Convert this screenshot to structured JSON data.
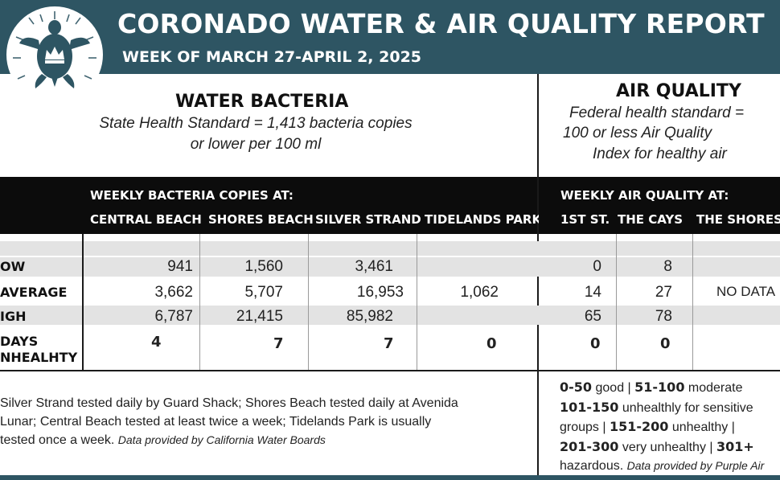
{
  "header": {
    "title": "CORONADO WATER & AIR QUALITY REPORT",
    "subtitle": "WEEK OF MARCH 27-APRIL 2, 2025",
    "logo_icon": "turtle-crown-logo"
  },
  "water": {
    "heading": "WATER BACTERIA",
    "standard_line1": "State Health Standard  = 1,413 bacteria copies",
    "standard_line2": "or lower per 100 ml",
    "band_title": "WEEKLY BACTERIA COPIES AT:",
    "columns": [
      "CENTRAL BEACH",
      "SHORES BEACH",
      "SILVER STRAND",
      "TIDELANDS PARK"
    ]
  },
  "air": {
    "heading": "AIR QUALITY",
    "standard_line1": "Federal health standard =",
    "standard_line2": "100 or less Air Quality",
    "standard_line3": "Index for healthy air",
    "band_title": "WEEKLY AIR QUALITY AT:",
    "columns": [
      "1ST ST.",
      "THE CAYS",
      "THE SHORES"
    ]
  },
  "rows": {
    "low": {
      "label": "OW",
      "water": [
        "941",
        "1,560",
        "3,461",
        ""
      ],
      "air": [
        "0",
        "8",
        ""
      ]
    },
    "average": {
      "label": "AVERAGE",
      "water": [
        "3,662",
        "5,707",
        "16,953",
        "1,062"
      ],
      "air": [
        "14",
        "27",
        "NO DATA"
      ]
    },
    "high": {
      "label": "IGH",
      "water": [
        "6,787",
        "21,415",
        "85,982",
        ""
      ],
      "air": [
        "65",
        "78",
        ""
      ]
    },
    "unhealthy": {
      "label_line1": "DAYS",
      "label_line2": "NHEALHTY",
      "water": [
        "4",
        "7",
        "7",
        "0"
      ],
      "air": [
        "0",
        "0",
        ""
      ]
    }
  },
  "footer": {
    "water_note_line1": "Silver Strand tested daily by Guard Shack; Shores Beach tested daily at Avenida",
    "water_note_line2": "Lunar; Central Beach tested at least twice a week; Tidelands Park is usually",
    "water_note_line3": "tested once a week.",
    "water_source": "Data provided by California Water Boards",
    "aqi_good_range": "0-50",
    "aqi_good": " good | ",
    "aqi_moderate_range": "51-100",
    "aqi_moderate": " moderate",
    "aqi_sensitive_range": "101-150",
    "aqi_sensitive": " unhealthly for sensitive",
    "aqi_groups": "groups | ",
    "aqi_unhealthy_range": "151-200",
    "aqi_unhealthy": " unhealthy |",
    "aqi_very_range": "201-300",
    "aqi_very": " very unhealthy | ",
    "aqi_hazard_range": "301+",
    "aqi_hazard": "hazardous.",
    "air_source": "Data provided by Purple Air"
  },
  "colors": {
    "header_bg": "#2e5563",
    "band_bg": "#0c0c0c",
    "row_grey": "#e3e3e3"
  }
}
